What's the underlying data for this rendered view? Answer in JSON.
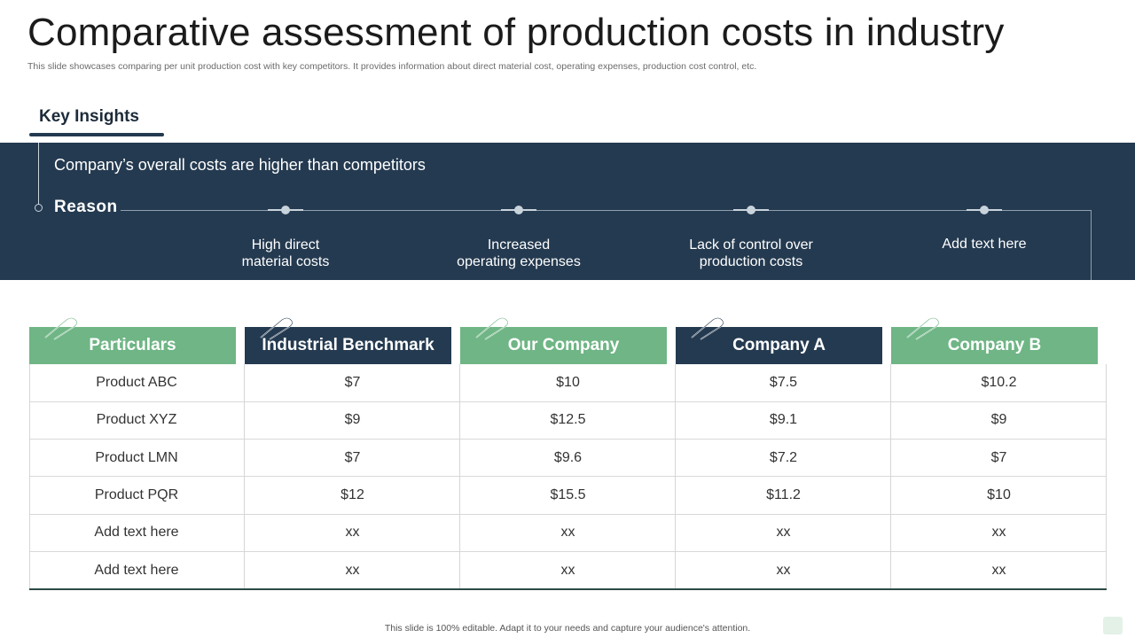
{
  "title": "Comparative assessment of production costs in industry",
  "subtitle": "This slide showcases comparing per unit production cost with key competitors. It provides information about direct material cost, operating expenses, production cost control, etc.",
  "key_insights": {
    "label": "Key Insights",
    "headline": "Company’s overall costs are higher than competitors",
    "reason_label": "Reason",
    "reasons": [
      {
        "line1": "High direct",
        "line2": "material costs"
      },
      {
        "line1": "Increased",
        "line2": "operating expenses"
      },
      {
        "line1": "Lack of control over",
        "line2": "production costs"
      },
      {
        "line1": "Add text here",
        "line2": ""
      }
    ]
  },
  "table": {
    "columns": [
      {
        "label": "Particulars",
        "style": "green"
      },
      {
        "label": "Industrial Benchmark",
        "style": "navy"
      },
      {
        "label": "Our Company",
        "style": "green"
      },
      {
        "label": "Company A",
        "style": "navy"
      },
      {
        "label": "Company B",
        "style": "green"
      }
    ],
    "rows": [
      [
        "Product ABC",
        "$7",
        "$10",
        "$7.5",
        "$10.2"
      ],
      [
        "Product XYZ",
        "$9",
        "$12.5",
        "$9.1",
        "$9"
      ],
      [
        "Product LMN",
        "$7",
        "$9.6",
        "$7.2",
        "$7"
      ],
      [
        "Product PQR",
        "$12",
        "$15.5",
        "$11.2",
        "$10"
      ],
      [
        "Add text here",
        "xx",
        "xx",
        "xx",
        "xx"
      ],
      [
        "Add text here",
        "xx",
        "xx",
        "xx",
        "xx"
      ]
    ]
  },
  "footer": "This slide is 100% editable. Adapt it to your needs and capture your audience's attention.",
  "colors": {
    "navy": "#243a50",
    "green": "#6fb585"
  }
}
